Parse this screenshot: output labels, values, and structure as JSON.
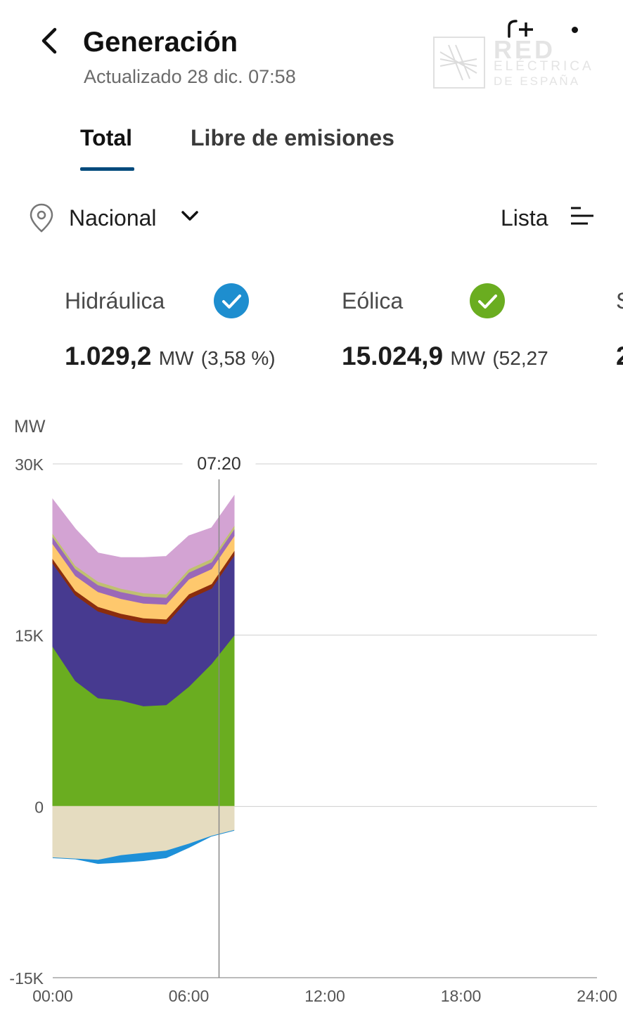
{
  "header": {
    "title": "Generación",
    "updated": "Actualizado 28 dic. 07:58",
    "logo": {
      "line1": "RED",
      "line2": "ELÉCTRICA",
      "line3": "DE ESPAÑA"
    }
  },
  "tabs": [
    {
      "label": "Total",
      "active": true
    },
    {
      "label": "Libre de emisiones",
      "active": false
    }
  ],
  "filters": {
    "region": "Nacional",
    "view_label": "Lista"
  },
  "technologies": [
    {
      "name": "Hidráulica",
      "value": "1.029,2",
      "unit": "MW",
      "percent": "(3,58 %)",
      "color": "#1e8ecf",
      "checked": true
    },
    {
      "name": "Eólica",
      "value": "15.024,9",
      "unit": "MW",
      "percent": "(52,27",
      "color": "#6aad20",
      "checked": true
    },
    {
      "name": "S",
      "value": "2",
      "unit": "",
      "percent": "",
      "color": "#888888",
      "checked": true
    }
  ],
  "chart_data": {
    "type": "area",
    "ylabel": "MW",
    "y_ticks": [
      "30K",
      "15K",
      "0",
      "-15K"
    ],
    "y_tick_values": [
      30000,
      15000,
      0,
      -15000
    ],
    "ylim": [
      -15000,
      30000
    ],
    "x_ticks": [
      "00:00",
      "06:00",
      "12:00",
      "18:00",
      "24:00"
    ],
    "xlim_hours": [
      0,
      24
    ],
    "cursor": {
      "label": "07:20",
      "hour": 7.333
    },
    "grid": true,
    "x_hours": [
      0,
      1,
      2,
      3,
      4,
      5,
      6,
      7,
      8
    ],
    "series": [
      {
        "color": "#6aad20",
        "values": [
          14000,
          11000,
          9500,
          9300,
          8800,
          8900,
          10500,
          12500,
          15000
        ]
      },
      {
        "color": "#473a90",
        "values": [
          7300,
          7500,
          7600,
          7200,
          7300,
          7100,
          7700,
          6600,
          7000
        ]
      },
      {
        "color": "#8b2d0d",
        "values": [
          400,
          400,
          400,
          400,
          400,
          400,
          400,
          400,
          400
        ]
      },
      {
        "color": "#fec86d",
        "values": [
          1300,
          1300,
          1300,
          1300,
          1300,
          1300,
          1300,
          1300,
          1300
        ]
      },
      {
        "color": "#9a68b8",
        "values": [
          600,
          600,
          600,
          600,
          600,
          600,
          600,
          600,
          600
        ]
      },
      {
        "color": "#c0c070",
        "values": [
          300,
          300,
          300,
          300,
          300,
          300,
          300,
          300,
          300
        ]
      },
      {
        "color": "#d3a3d3",
        "values": [
          3000,
          3200,
          2500,
          2700,
          3100,
          3300,
          2900,
          2700,
          2600
        ]
      },
      {
        "color": "#e5dcc0",
        "values": [
          -4500,
          -4600,
          -4700,
          -4300,
          -4100,
          -3900,
          -3300,
          -2600,
          -2100
        ],
        "negative": true
      },
      {
        "color": "#1e90d8",
        "values": [
          0,
          0,
          -300,
          -600,
          -650,
          -600,
          -300,
          0,
          0
        ],
        "negative": true
      }
    ]
  }
}
